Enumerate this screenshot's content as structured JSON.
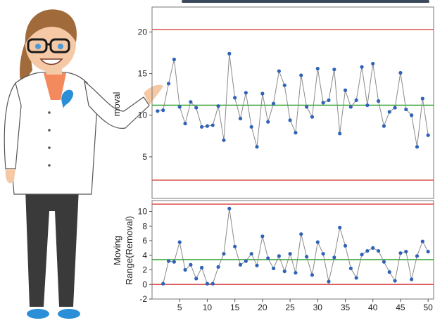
{
  "colors": {
    "limit_line": "#d9534f",
    "center_line": "#2ea02e",
    "data_line": "#8a8a8a",
    "data_point": "#2f62b8",
    "coat": "#ffffff",
    "coat_outline": "#555555",
    "hair": "#a06a3a",
    "skin": "#f5c9a6",
    "pants": "#3a3a3a",
    "shoes": "#2a8fd6",
    "shirt": "#f28a5e",
    "glasses": "#1a1a1a",
    "logo": "#2a8fd6"
  },
  "chart_data": [
    {
      "type": "line",
      "title": "",
      "ylabel": "Removal",
      "ylabel_visible": "moval",
      "xlim": [
        0,
        51
      ],
      "ylim": [
        0,
        23
      ],
      "yticks": [
        5,
        10,
        15,
        20
      ],
      "grid": false,
      "ucl": 20.3,
      "center": 11.2,
      "lcl": 2.2,
      "series": [
        {
          "values": [
            10.5,
            10.6,
            13.8,
            16.7,
            11.0,
            9.0,
            11.6,
            10.9,
            8.6,
            8.7,
            8.8,
            11.1,
            7.0,
            17.4,
            12.1,
            9.6,
            12.7,
            8.6,
            6.2,
            12.6,
            9.2,
            11.4,
            15.3,
            13.6,
            9.4,
            7.9,
            14.8,
            11.0,
            9.8,
            15.6,
            11.5,
            11.8,
            15.5,
            7.8,
            13.0,
            11.0,
            11.8,
            15.8,
            11.2,
            16.2,
            11.7,
            8.7,
            10.4,
            10.9,
            15.1,
            10.7,
            10.0,
            6.2,
            12.0,
            7.6
          ]
        }
      ]
    },
    {
      "type": "line",
      "title": "",
      "ylabel": "Moving Range(Removal)",
      "ylabel_lines": [
        "Moving",
        "Range(Removal)"
      ],
      "xlim": [
        0,
        51
      ],
      "ylim": [
        -2,
        11.5
      ],
      "yticks": [
        -2,
        0,
        2,
        4,
        6,
        8,
        10
      ],
      "xticks": [
        5,
        10,
        15,
        20,
        25,
        30,
        35,
        40,
        45,
        50
      ],
      "grid": false,
      "ucl": 11.0,
      "center": 3.4,
      "lcl": 0,
      "series": [
        {
          "start_x": 2,
          "values": [
            0.1,
            3.2,
            3.1,
            5.8,
            2.0,
            2.7,
            0.8,
            2.3,
            0.1,
            0.1,
            2.4,
            4.2,
            10.4,
            5.2,
            2.7,
            3.2,
            4.2,
            2.6,
            6.6,
            3.6,
            2.2,
            3.9,
            1.8,
            4.2,
            1.6,
            6.9,
            3.8,
            1.3,
            5.8,
            4.2,
            0.4,
            3.7,
            7.8,
            5.3,
            2.2,
            0.9,
            4.1,
            4.6,
            5.0,
            4.6,
            3.1,
            1.7,
            0.5,
            4.3,
            4.5,
            0.7,
            3.9,
            5.9,
            4.5
          ]
        }
      ]
    }
  ]
}
